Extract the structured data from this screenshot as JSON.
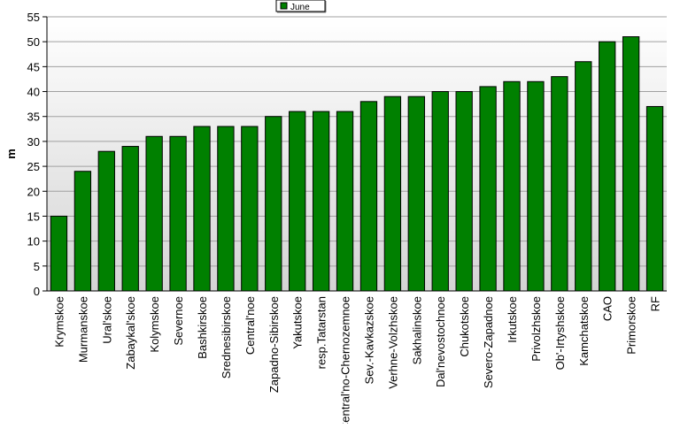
{
  "chart_data": {
    "type": "bar",
    "title": "",
    "xlabel": "",
    "ylabel": "m",
    "ylim": [
      0,
      55
    ],
    "y_ticks": [
      0,
      5,
      10,
      15,
      20,
      25,
      30,
      35,
      40,
      45,
      50,
      55
    ],
    "grid": true,
    "legend_position": "top-center",
    "categories": [
      "Krymskoe",
      "Murmanskoe",
      "Ural'skoe",
      "Zabaykal'skoe",
      "Kolymskoe",
      "Severnoe",
      "Bashkirskoe",
      "Srednesibirskoe",
      "Central'noe",
      "Zapadno-Sibirskoe",
      "Yakutskoe",
      "resp.Tatarstan",
      "Central'no-Chernozemnoe",
      "Sev.-Kavkazskoe",
      "Verhne-Volzhskoe",
      "Sakhalinskoe",
      "Dal'nevostochnoe",
      "Chukotskoe",
      "Severo-Zapadnoe",
      "Irkutskoe",
      "Privolzhskoe",
      "Ob'-Irtyshskoe",
      "Kamchatskoe",
      "CAO",
      "Primorskoe",
      "RF"
    ],
    "series": [
      {
        "name": "June",
        "color": "#008000",
        "values": [
          15,
          24,
          28,
          29,
          31,
          31,
          33,
          33,
          33,
          35,
          36,
          36,
          36,
          38,
          39,
          39,
          40,
          40,
          41,
          42,
          42,
          43,
          46,
          50,
          51,
          37
        ]
      }
    ]
  },
  "colors": {
    "bar": "#008000",
    "plot_background_top": "#ffffff",
    "plot_background_bottom": "#d4d4d4",
    "gridline": "#a0a0a0"
  }
}
